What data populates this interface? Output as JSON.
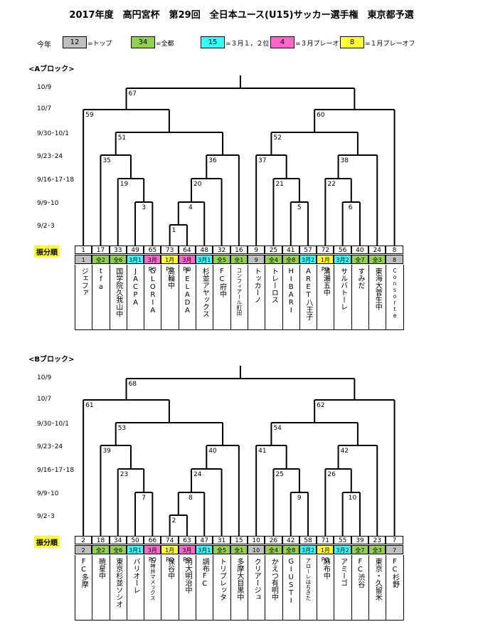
{
  "title": "2017年度　高円宮杯　第29回　全日本ユース(U15)サッカー選手権　東京都予選",
  "legend": {
    "label": "今年",
    "items": [
      {
        "num": "12",
        "text": "=トップ",
        "color": "#bfbfbf"
      },
      {
        "num": "34",
        "text": "=全都",
        "color": "#92d050"
      },
      {
        "num": "15",
        "text": "=３月１，２位",
        "color": "#33ffff"
      },
      {
        "num": "4",
        "text": "=３月プレーオフ",
        "color": "#ff66cc"
      },
      {
        "num": "8",
        "text": "=１月プレーオフ",
        "color": "#ffff33"
      }
    ]
  },
  "colors": {
    "top": "#bfbfbf",
    "zento": "#92d050",
    "m3": "#33ffff",
    "m3po": "#ff66cc",
    "j1po": "#ffff33"
  },
  "rounds": [
    "10/9",
    "10/7",
    "9/30･10/1",
    "9/23･24",
    "9/16･17･18",
    "9/9･10",
    "9/2･3"
  ],
  "order_label": "振分順",
  "blocks": [
    {
      "name": "<Aブロック>",
      "matches": {
        "m1": "1",
        "m3": "3",
        "m4": "4",
        "m5": "5",
        "m6": "6",
        "m19": "19",
        "m20": "20",
        "m21": "21",
        "m22": "22",
        "m35": "35",
        "m36": "36",
        "m37": "37",
        "m38": "38",
        "m51": "51",
        "m52": "52",
        "m59": "59",
        "m60": "60",
        "m67": "67"
      },
      "order": [
        "1",
        "17",
        "33",
        "49",
        "65",
        "73",
        "64",
        "48",
        "32",
        "16",
        "9",
        "25",
        "41",
        "57",
        "72",
        "56",
        "40",
        "24",
        "8"
      ],
      "tags": [
        {
          "t": "1",
          "c": "top"
        },
        {
          "t": "全2",
          "c": "zento"
        },
        {
          "t": "全6",
          "c": "zento"
        },
        {
          "t": "3月1",
          "c": "m3"
        },
        {
          "t": "3月PO",
          "c": "m3po"
        },
        {
          "t": "1月PO",
          "c": "j1po"
        },
        {
          "t": "3月PO",
          "c": "m3po"
        },
        {
          "t": "3月1",
          "c": "m3"
        },
        {
          "t": "全5",
          "c": "zento"
        },
        {
          "t": "全1",
          "c": "zento"
        },
        {
          "t": "9",
          "c": "top"
        },
        {
          "t": "全4",
          "c": "zento"
        },
        {
          "t": "全8",
          "c": "zento"
        },
        {
          "t": "3月2",
          "c": "m3"
        },
        {
          "t": "1月PO",
          "c": "j1po"
        },
        {
          "t": "3月2",
          "c": "m3"
        },
        {
          "t": "全7",
          "c": "zento"
        },
        {
          "t": "全3",
          "c": "zento"
        },
        {
          "t": "8",
          "c": "top"
        }
      ],
      "teams": [
        "ジェファ",
        "tfa",
        "国学院久我山中",
        "JACPA",
        "GLORIA",
        "高輪中",
        "PELADA",
        "杉並アヤックス",
        "FC府中",
        "コンフィアール町田",
        "トッカーノ",
        "トレーロス",
        "HIBARI",
        "ARET八王子",
        "清瀬五中",
        "サルバトーレ",
        "すみだ",
        "東海大菅生中",
        "Consorte"
      ]
    },
    {
      "name": "<Bブロック>",
      "matches": {
        "m1": "2",
        "m3": "7",
        "m4": "8",
        "m5": "9",
        "m6": "10",
        "m19": "23",
        "m20": "24",
        "m21": "25",
        "m22": "26",
        "m35": "39",
        "m36": "40",
        "m37": "41",
        "m38": "42",
        "m51": "53",
        "m52": "54",
        "m59": "61",
        "m60": "62",
        "m67": "68"
      },
      "order": [
        "2",
        "18",
        "34",
        "50",
        "66",
        "74",
        "63",
        "47",
        "31",
        "15",
        "10",
        "26",
        "42",
        "58",
        "71",
        "55",
        "39",
        "23",
        "7"
      ],
      "tags": [
        {
          "t": "2",
          "c": "top"
        },
        {
          "t": "全2",
          "c": "zento"
        },
        {
          "t": "全6",
          "c": "zento"
        },
        {
          "t": "3月1",
          "c": "m3"
        },
        {
          "t": "3月PO",
          "c": "m3po"
        },
        {
          "t": "1月PO",
          "c": "j1po"
        },
        {
          "t": "3月PO",
          "c": "m3po"
        },
        {
          "t": "3月1",
          "c": "m3"
        },
        {
          "t": "全5",
          "c": "zento"
        },
        {
          "t": "全1",
          "c": "zento"
        },
        {
          "t": "10",
          "c": "top"
        },
        {
          "t": "全4",
          "c": "zento"
        },
        {
          "t": "全8",
          "c": "zento"
        },
        {
          "t": "3月2",
          "c": "m3"
        },
        {
          "t": "1月PO",
          "c": "j1po"
        },
        {
          "t": "3月2",
          "c": "m3"
        },
        {
          "t": "全7",
          "c": "zento"
        },
        {
          "t": "全3",
          "c": "zento"
        },
        {
          "t": "7",
          "c": "top"
        }
      ],
      "teams": [
        "FC多摩",
        "暁星中",
        "東京杉並ソシオ",
        "バリオーレ",
        "石神井マメックス",
        "保谷中",
        "明大明治中",
        "調布FC",
        "トリプレッタ",
        "多摩大目黒中",
        "クリアージュ",
        "かえつ有明中",
        "GIUSTI",
        "アローレはちきた",
        "麻布中",
        "アミーゴ",
        "FC渋谷",
        "東京・久留米",
        "FC杉野"
      ]
    }
  ]
}
